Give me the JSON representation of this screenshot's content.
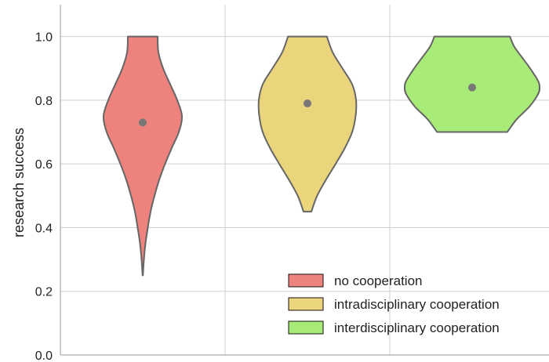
{
  "chart_data": {
    "type": "violin",
    "ylabel": "research success",
    "ylim": [
      0.0,
      1.1
    ],
    "yticks": [
      "0.0",
      "0.2",
      "0.4",
      "0.6",
      "0.8",
      "1.0"
    ],
    "grid": true,
    "legend_position": "bottom-right",
    "series": [
      {
        "name": "no cooperation",
        "color": "#ee827c",
        "mean": 0.73,
        "min": 0.25,
        "max": 1.0,
        "density": [
          [
            0.25,
            0.005
          ],
          [
            0.3,
            0.03
          ],
          [
            0.35,
            0.07
          ],
          [
            0.4,
            0.13
          ],
          [
            0.45,
            0.2
          ],
          [
            0.5,
            0.3
          ],
          [
            0.55,
            0.42
          ],
          [
            0.6,
            0.57
          ],
          [
            0.65,
            0.74
          ],
          [
            0.7,
            0.92
          ],
          [
            0.75,
            1.0
          ],
          [
            0.8,
            0.88
          ],
          [
            0.85,
            0.7
          ],
          [
            0.9,
            0.52
          ],
          [
            0.95,
            0.4
          ],
          [
            1.0,
            0.38
          ]
        ]
      },
      {
        "name": "intradisciplinary cooperation",
        "color": "#ead47c",
        "mean": 0.79,
        "min": 0.45,
        "max": 1.0,
        "density": [
          [
            0.45,
            0.08
          ],
          [
            0.5,
            0.2
          ],
          [
            0.55,
            0.38
          ],
          [
            0.6,
            0.58
          ],
          [
            0.65,
            0.77
          ],
          [
            0.7,
            0.92
          ],
          [
            0.75,
            0.99
          ],
          [
            0.8,
            1.0
          ],
          [
            0.85,
            0.92
          ],
          [
            0.9,
            0.72
          ],
          [
            0.95,
            0.52
          ],
          [
            1.0,
            0.4
          ]
        ]
      },
      {
        "name": "interdisciplinary cooperation",
        "color": "#a8eb78",
        "mean": 0.84,
        "min": 0.7,
        "max": 1.0,
        "density": [
          [
            0.7,
            0.52
          ],
          [
            0.74,
            0.66
          ],
          [
            0.78,
            0.85
          ],
          [
            0.82,
            0.98
          ],
          [
            0.84,
            1.0
          ],
          [
            0.86,
            0.98
          ],
          [
            0.9,
            0.86
          ],
          [
            0.94,
            0.72
          ],
          [
            0.97,
            0.62
          ],
          [
            1.0,
            0.56
          ]
        ]
      }
    ]
  }
}
